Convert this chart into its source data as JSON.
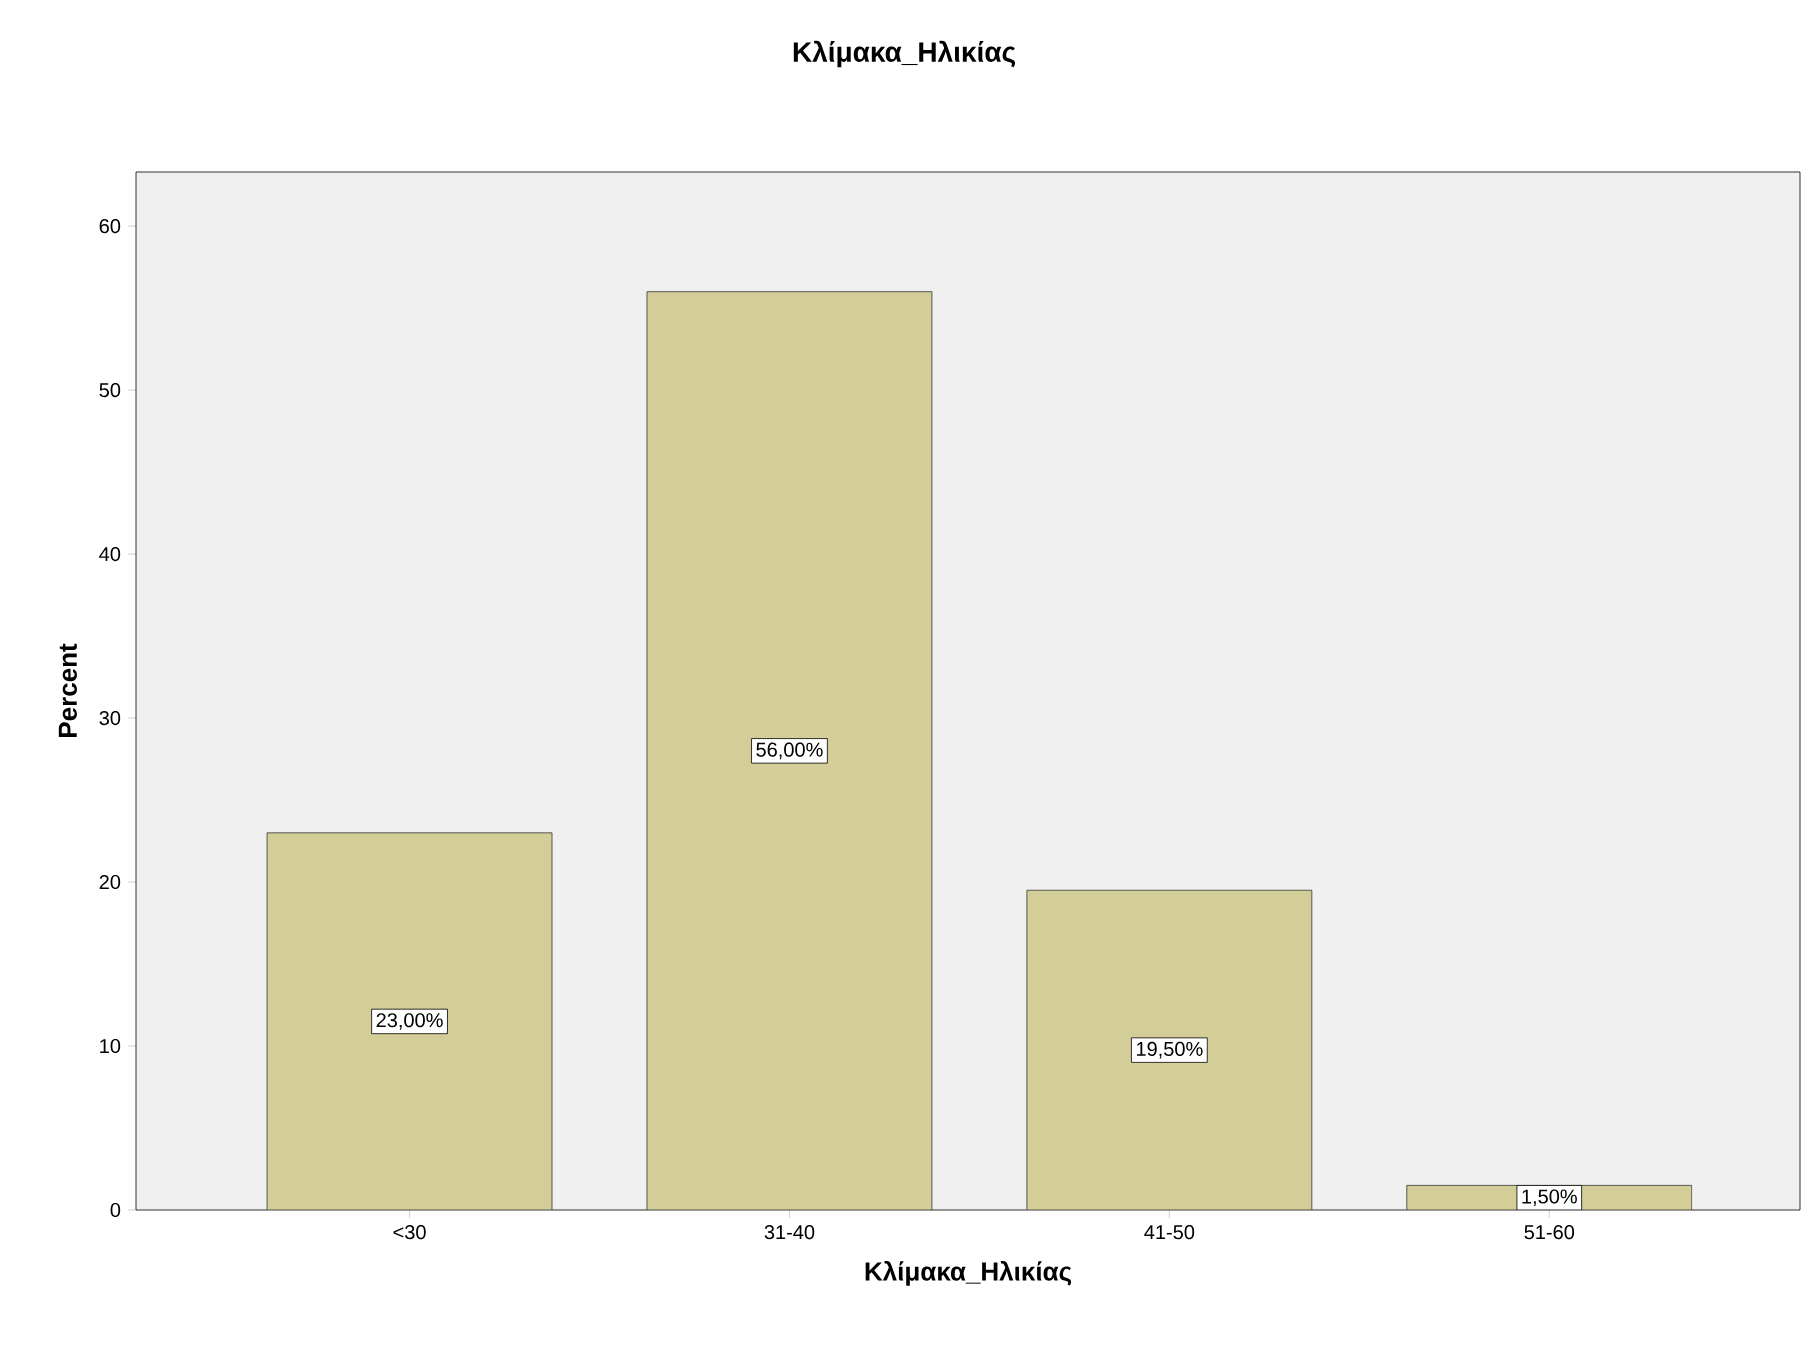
{
  "chart_data": {
    "type": "bar",
    "title": "Κλίμακα_Ηλικίας",
    "xlabel": "Κλίμακα_Ηλικίας",
    "ylabel": "Percent",
    "categories": [
      "<30",
      "31-40",
      "41-50",
      "51-60"
    ],
    "values": [
      23,
      56,
      19.5,
      1.5
    ],
    "value_labels": [
      "23,00%",
      "56,00%",
      "19,50%",
      "1,50%"
    ],
    "color": "#d3ce97",
    "ylim": [
      0,
      63.3
    ],
    "yticks": [
      0,
      10,
      20,
      30,
      40,
      50,
      60
    ],
    "grid": false
  }
}
